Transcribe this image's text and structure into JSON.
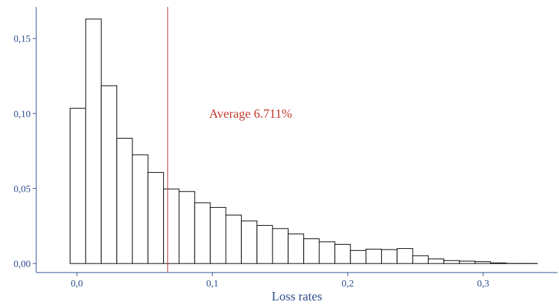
{
  "chart_data": {
    "type": "bar",
    "title": "",
    "xlabel": "Loss rates",
    "ylabel": "",
    "bin_width": 0.0115,
    "bin_start": -0.005,
    "values": [
      0.1035,
      0.163,
      0.1185,
      0.0835,
      0.0725,
      0.0607,
      0.0497,
      0.048,
      0.0405,
      0.0374,
      0.0323,
      0.0284,
      0.0254,
      0.0233,
      0.0197,
      0.0165,
      0.0145,
      0.0128,
      0.0087,
      0.0096,
      0.0093,
      0.01,
      0.0052,
      0.0031,
      0.002,
      0.0016,
      0.0012,
      0.0004,
      0.0001,
      0.0001
    ],
    "xlim": [
      -0.03,
      0.355
    ],
    "ylim": [
      -0.006,
      0.171
    ],
    "x_ticks": [
      {
        "value": 0.0,
        "label": "0,0"
      },
      {
        "value": 0.1,
        "label": "0,1"
      },
      {
        "value": 0.2,
        "label": "0,2"
      },
      {
        "value": 0.3,
        "label": "0,3"
      }
    ],
    "y_ticks": [
      {
        "value": 0.0,
        "label": "0,00"
      },
      {
        "value": 0.05,
        "label": "0,05"
      },
      {
        "value": 0.1,
        "label": "0,10"
      },
      {
        "value": 0.15,
        "label": "0,15"
      }
    ],
    "average": {
      "value": 0.06711,
      "label": "Average 6.711%",
      "color": "#c0392b"
    },
    "grid": false,
    "axis_color": "#2a4d8f",
    "bar_fill": "#ffffff",
    "bar_stroke": "#000000"
  }
}
